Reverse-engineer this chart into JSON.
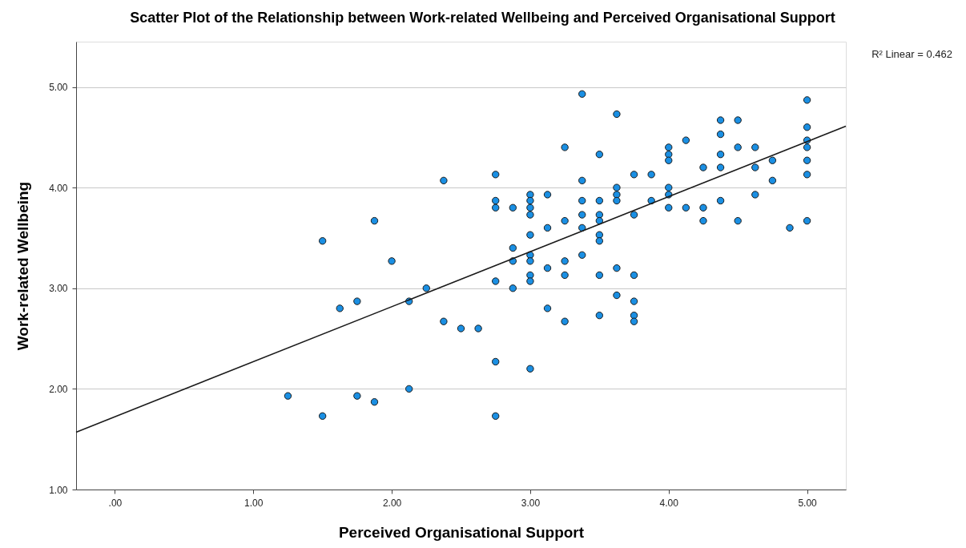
{
  "chart_data": {
    "type": "scatter",
    "title": "Scatter Plot of the Relationship between Work-related Wellbeing and Perceived Organisational Support",
    "xlabel": "Perceived Organisational Support",
    "ylabel": "Work-related Wellbeing",
    "annotations": [
      "R² Linear = 0.462"
    ],
    "xlim": [
      -0.28,
      5.28
    ],
    "ylim": [
      1.0,
      5.45
    ],
    "xticks": [
      {
        "value": 0,
        "label": ".00"
      },
      {
        "value": 1,
        "label": "1.00"
      },
      {
        "value": 2,
        "label": "2.00"
      },
      {
        "value": 3,
        "label": "3.00"
      },
      {
        "value": 4,
        "label": "4.00"
      },
      {
        "value": 5,
        "label": "5.00"
      }
    ],
    "yticks": [
      {
        "value": 1,
        "label": "1.00"
      },
      {
        "value": 2,
        "label": "2.00"
      },
      {
        "value": 3,
        "label": "3.00"
      },
      {
        "value": 4,
        "label": "4.00"
      },
      {
        "value": 5,
        "label": "5.00"
      }
    ],
    "grid": "y",
    "series": [
      {
        "color": "#1a8fe3",
        "marker": "circle",
        "x": [
          1.25,
          1.5,
          1.5,
          1.625,
          1.75,
          1.75,
          1.875,
          1.875,
          2.0,
          2.125,
          2.125,
          2.25,
          2.375,
          2.375,
          2.5,
          2.625,
          2.75,
          2.75,
          2.75,
          2.75,
          2.75,
          2.75,
          2.875,
          2.875,
          2.875,
          2.875,
          3.0,
          3.0,
          3.0,
          3.0,
          3.0,
          3.0,
          3.0,
          3.0,
          3.0,
          3.0,
          3.125,
          3.125,
          3.125,
          3.125,
          3.25,
          3.25,
          3.25,
          3.25,
          3.25,
          3.375,
          3.375,
          3.375,
          3.375,
          3.375,
          3.375,
          3.5,
          3.5,
          3.5,
          3.5,
          3.5,
          3.5,
          3.5,
          3.5,
          3.625,
          3.625,
          3.625,
          3.625,
          3.625,
          3.625,
          3.75,
          3.75,
          3.75,
          3.75,
          3.75,
          3.75,
          3.875,
          3.875,
          4.0,
          4.0,
          4.0,
          4.0,
          4.0,
          4.0,
          4.125,
          4.125,
          4.25,
          4.25,
          4.25,
          4.375,
          4.375,
          4.375,
          4.375,
          4.375,
          4.5,
          4.5,
          4.5,
          4.625,
          4.625,
          4.625,
          4.75,
          4.75,
          4.875,
          5.0,
          5.0,
          5.0,
          5.0,
          5.0,
          5.0,
          5.0
        ],
        "values": [
          1.93,
          3.47,
          1.73,
          2.8,
          2.87,
          1.93,
          3.67,
          1.87,
          3.27,
          2.87,
          2.0,
          3.0,
          4.07,
          2.67,
          2.6,
          2.6,
          4.13,
          3.87,
          3.8,
          3.07,
          2.27,
          1.73,
          3.8,
          3.4,
          3.27,
          3.0,
          3.93,
          3.87,
          3.8,
          3.73,
          3.53,
          3.33,
          3.27,
          3.13,
          3.07,
          2.2,
          3.93,
          3.6,
          3.2,
          2.8,
          4.4,
          3.67,
          3.27,
          3.13,
          2.67,
          4.93,
          4.07,
          3.87,
          3.73,
          3.6,
          3.33,
          4.33,
          3.87,
          3.73,
          3.67,
          3.53,
          3.47,
          3.13,
          2.73,
          4.73,
          4.0,
          3.93,
          3.87,
          3.2,
          2.93,
          4.13,
          3.73,
          3.13,
          2.87,
          2.73,
          2.67,
          4.13,
          3.87,
          4.4,
          4.33,
          4.27,
          4.0,
          3.93,
          3.8,
          4.47,
          3.8,
          4.2,
          3.8,
          3.67,
          4.67,
          4.53,
          4.33,
          4.2,
          3.87,
          4.67,
          4.4,
          3.67,
          4.4,
          4.2,
          3.93,
          4.27,
          4.07,
          3.6,
          4.87,
          4.6,
          4.47,
          4.4,
          4.27,
          4.13,
          3.67
        ]
      },
      {
        "type": "line",
        "marker": "none",
        "color": "#1a1a1a",
        "x": [
          -0.28,
          5.28
        ],
        "values": [
          1.57,
          4.61
        ]
      }
    ]
  }
}
